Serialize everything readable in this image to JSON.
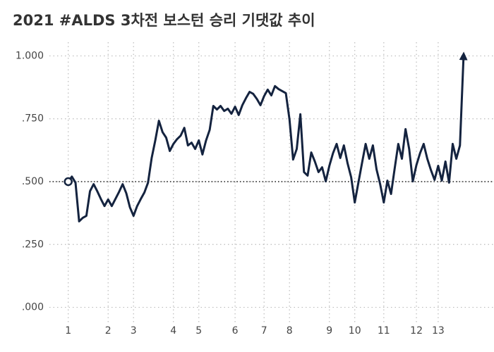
{
  "chart_data": {
    "type": "line",
    "title": "2021 #ALDS 3차전 보스턴 승리 기댓값 추이",
    "x": [
      0,
      1,
      2,
      3,
      4,
      5,
      6,
      7,
      8,
      9,
      10,
      11,
      12,
      13,
      14,
      15,
      16,
      17,
      18,
      19,
      20,
      21,
      22,
      23,
      24,
      25,
      26,
      27,
      28,
      29,
      30,
      31,
      32,
      33,
      34,
      35,
      36,
      37,
      38,
      39,
      40,
      41,
      42,
      43,
      44,
      45,
      46,
      47,
      48,
      49,
      50,
      51,
      52,
      53,
      54,
      55,
      56,
      57,
      58,
      59,
      60,
      61,
      62,
      63,
      64,
      65,
      66,
      67,
      68,
      69,
      70,
      71,
      72,
      73,
      74,
      75,
      76,
      77,
      78,
      79,
      80,
      81,
      82,
      83,
      84,
      85,
      86,
      87,
      88,
      89,
      90,
      91,
      92,
      93,
      94,
      95,
      96,
      97,
      98,
      99,
      100,
      101,
      102,
      103,
      104,
      105,
      106,
      107,
      108,
      109
    ],
    "series": [
      {
        "name": "보스턴 승리 기댓값",
        "color": "#14233f",
        "values": [
          0.5,
          0.52,
          0.496,
          0.342,
          0.356,
          0.364,
          0.462,
          0.49,
          0.462,
          0.431,
          0.403,
          0.429,
          0.403,
          0.431,
          0.459,
          0.49,
          0.454,
          0.398,
          0.364,
          0.403,
          0.431,
          0.457,
          0.496,
          0.594,
          0.664,
          0.742,
          0.697,
          0.675,
          0.622,
          0.65,
          0.669,
          0.683,
          0.714,
          0.644,
          0.655,
          0.63,
          0.664,
          0.608,
          0.664,
          0.706,
          0.801,
          0.787,
          0.801,
          0.781,
          0.79,
          0.77,
          0.798,
          0.765,
          0.804,
          0.832,
          0.857,
          0.849,
          0.829,
          0.804,
          0.84,
          0.866,
          0.843,
          0.88,
          0.868,
          0.86,
          0.852,
          0.748,
          0.588,
          0.63,
          0.768,
          0.538,
          0.524,
          0.616,
          0.58,
          0.538,
          0.557,
          0.501,
          0.563,
          0.613,
          0.65,
          0.594,
          0.644,
          0.574,
          0.518,
          0.417,
          0.496,
          0.574,
          0.65,
          0.591,
          0.644,
          0.549,
          0.49,
          0.417,
          0.504,
          0.451,
          0.552,
          0.65,
          0.591,
          0.709,
          0.63,
          0.501,
          0.566,
          0.613,
          0.65,
          0.591,
          0.546,
          0.507,
          0.563,
          0.504,
          0.58,
          0.496,
          0.65,
          0.591,
          0.644,
          1.0
        ]
      }
    ],
    "xlim": [
      -5,
      117
    ],
    "xticks": [
      {
        "value": 0,
        "label": "1"
      },
      {
        "value": 11,
        "label": "2"
      },
      {
        "value": 18,
        "label": "3"
      },
      {
        "value": 29,
        "label": "4"
      },
      {
        "value": 36,
        "label": "5"
      },
      {
        "value": 46,
        "label": "6"
      },
      {
        "value": 54,
        "label": "7"
      },
      {
        "value": 61,
        "label": "8"
      },
      {
        "value": 72,
        "label": "9"
      },
      {
        "value": 79,
        "label": "10"
      },
      {
        "value": 87,
        "label": "11"
      },
      {
        "value": 96,
        "label": "12"
      },
      {
        "value": 102,
        "label": "13"
      }
    ],
    "ylim": [
      -0.06,
      1.06
    ],
    "yticks": [
      {
        "value": 0,
        "label": ".000"
      },
      {
        "value": 0.25,
        "label": ".250"
      },
      {
        "value": 0.5,
        "label": ".500"
      },
      {
        "value": 0.75,
        "label": ".750"
      },
      {
        "value": 1,
        "label": "1.000"
      }
    ],
    "hline": 0.5,
    "grid": true
  }
}
